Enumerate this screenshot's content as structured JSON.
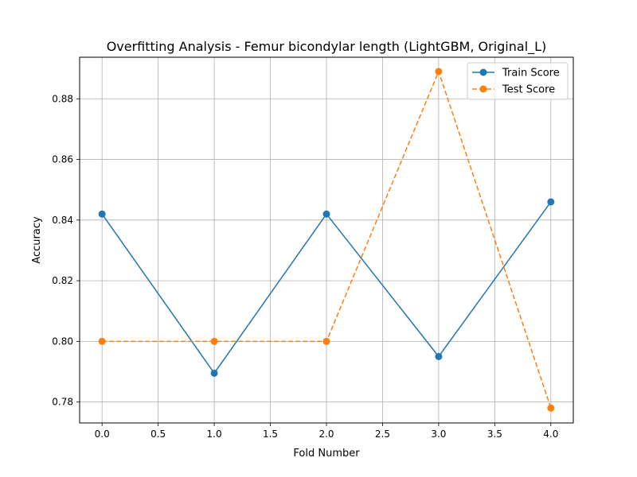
{
  "chart_data": {
    "type": "line",
    "title": "Overfitting Analysis - Femur bicondylar length (LightGBM, Original_L)",
    "xlabel": "Fold Number",
    "ylabel": "Accuracy",
    "x": [
      0,
      1,
      2,
      3,
      4
    ],
    "xlim": [
      -0.2,
      4.2
    ],
    "ylim": [
      0.7731,
      0.8937
    ],
    "xticks": [
      0.0,
      0.5,
      1.0,
      1.5,
      2.0,
      2.5,
      3.0,
      3.5,
      4.0
    ],
    "xtick_labels": [
      "0.0",
      "0.5",
      "1.0",
      "1.5",
      "2.0",
      "2.5",
      "3.0",
      "3.5",
      "4.0"
    ],
    "yticks": [
      0.78,
      0.8,
      0.82,
      0.84,
      0.86,
      0.88
    ],
    "ytick_labels": [
      "0.78",
      "0.80",
      "0.82",
      "0.84",
      "0.86",
      "0.88"
    ],
    "grid": true,
    "legend_position": "top-right",
    "series": [
      {
        "name": "Train Score",
        "values": [
          0.842,
          0.7895,
          0.842,
          0.795,
          0.846
        ],
        "color": "#1f77b4",
        "linestyle": "solid",
        "marker": "circle"
      },
      {
        "name": "Test Score",
        "values": [
          0.8,
          0.8,
          0.8,
          0.889,
          0.778
        ],
        "color": "#ff7f0e",
        "linestyle": "dashed",
        "marker": "circle"
      }
    ]
  }
}
